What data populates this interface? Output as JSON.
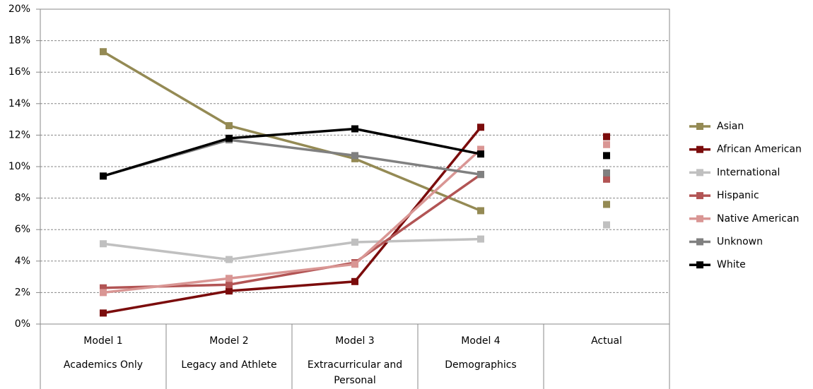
{
  "chart_data": {
    "type": "line",
    "categories": [
      [
        "Model 1",
        "Academics Only"
      ],
      [
        "Model 2",
        "Legacy and Athlete"
      ],
      [
        "Model 3",
        "Extracurricular and Personal"
      ],
      [
        "Model 4",
        "Demographics"
      ],
      [
        "Actual"
      ]
    ],
    "markers_only": [
      "Actual"
    ],
    "ylim": [
      0,
      20
    ],
    "yticks": [
      {
        "value": 0,
        "label": "0%"
      },
      {
        "value": 2,
        "label": "2%"
      },
      {
        "value": 4,
        "label": "4%"
      },
      {
        "value": 6,
        "label": "6%"
      },
      {
        "value": 8,
        "label": "8%"
      },
      {
        "value": 10,
        "label": "10%"
      },
      {
        "value": 12,
        "label": "12%"
      },
      {
        "value": 14,
        "label": "14%"
      },
      {
        "value": 16,
        "label": "16%"
      },
      {
        "value": 18,
        "label": "18%"
      },
      {
        "value": 20,
        "label": "20%"
      }
    ],
    "grid": true,
    "legend": "right",
    "series": [
      {
        "name": "Asian",
        "color": "#948a54",
        "values": [
          17.3,
          12.6,
          10.5,
          7.2,
          7.6
        ]
      },
      {
        "name": "African American",
        "color": "#7b0c0c",
        "values": [
          0.7,
          2.1,
          2.7,
          12.5,
          11.9
        ]
      },
      {
        "name": "International",
        "color": "#c0c0c0",
        "values": [
          5.1,
          4.1,
          5.2,
          5.4,
          6.3
        ]
      },
      {
        "name": "Hispanic",
        "color": "#b25454",
        "values": [
          2.3,
          2.5,
          3.9,
          9.5,
          9.2
        ]
      },
      {
        "name": "Native American",
        "color": "#d99694",
        "values": [
          2.0,
          2.9,
          3.8,
          11.1,
          11.4
        ]
      },
      {
        "name": "Unknown",
        "color": "#808080",
        "values": [
          9.4,
          11.7,
          10.7,
          9.5,
          9.6
        ]
      },
      {
        "name": "White",
        "color": "#000000",
        "values": [
          9.4,
          11.8,
          12.4,
          10.8,
          10.7
        ]
      }
    ]
  }
}
